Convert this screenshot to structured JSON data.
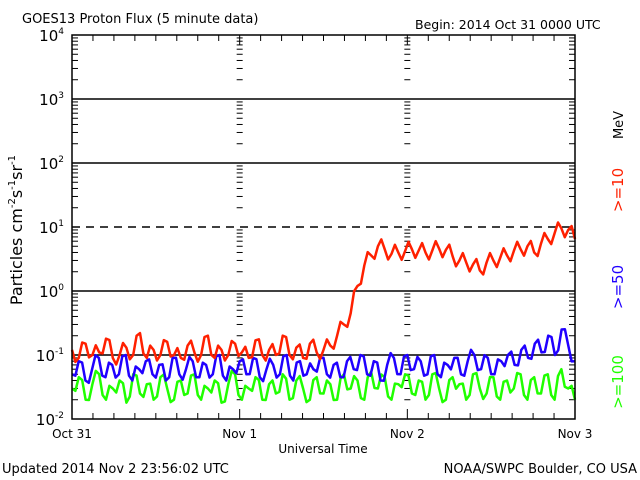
{
  "chart_data": {
    "type": "line",
    "title": "GOES13 Proton Flux (5 minute data)",
    "begin_label": "Begin: 2014 Oct 31 0000 UTC",
    "xlabel": "Universal Time",
    "ylabel": "Particles cm",
    "ylabel_parts": [
      "Particles cm",
      "-2",
      "s",
      "-1",
      "sr",
      "-1"
    ],
    "yscale": "log",
    "ylim": [
      0.01,
      10000
    ],
    "y_ticks": [
      {
        "base": "10",
        "exp": "4"
      },
      {
        "base": "10",
        "exp": "3"
      },
      {
        "base": "10",
        "exp": "2"
      },
      {
        "base": "10",
        "exp": "1"
      },
      {
        "base": "10",
        "exp": "0"
      },
      {
        "base": "10",
        "exp": "-1"
      },
      {
        "base": "10",
        "exp": "-2"
      }
    ],
    "x_range_days": [
      0,
      3
    ],
    "x_tick_labels": [
      "Oct 31",
      "Nov 1",
      "Nov 2",
      "Nov 3"
    ],
    "threshold_line": 10,
    "units_label": "MeV",
    "series": [
      {
        "name": ">=10",
        "color": "#ff2000",
        "values": [
          0.12,
          0.09,
          0.15,
          0.1,
          0.11,
          0.18,
          0.09,
          0.1,
          0.13,
          0.1,
          0.22,
          0.09,
          0.12,
          0.1,
          0.16,
          0.1,
          0.09,
          0.14,
          0.11,
          0.1,
          0.2,
          0.09,
          0.12,
          0.1,
          0.15,
          0.11,
          0.09,
          0.17,
          0.1,
          0.12,
          0.1,
          0.2,
          0.1,
          0.13,
          0.09,
          0.15,
          0.11,
          0.12,
          0.14,
          0.2,
          0.3,
          0.45,
          1.2,
          2.5,
          3.6,
          5.0,
          4.5,
          3.8,
          4.0,
          4.2,
          4.5,
          4.3,
          4.0,
          4.3,
          4.6,
          4.4,
          3.5,
          3.0,
          2.8,
          2.6,
          2.1,
          2.8,
          3.0,
          3.3,
          3.6,
          4.2,
          4.5,
          5.0,
          4.0,
          5.5,
          6.5,
          8.0,
          9.5,
          9.0,
          6.5
        ]
      },
      {
        "name": ">=50",
        "color": "#2000ff",
        "values": [
          0.05,
          0.08,
          0.04,
          0.06,
          0.09,
          0.045,
          0.07,
          0.05,
          0.1,
          0.04,
          0.06,
          0.08,
          0.05,
          0.07,
          0.04,
          0.09,
          0.05,
          0.06,
          0.08,
          0.045,
          0.07,
          0.05,
          0.1,
          0.04,
          0.06,
          0.08,
          0.05,
          0.09,
          0.045,
          0.06,
          0.07,
          0.05,
          0.1,
          0.04,
          0.08,
          0.05,
          0.06,
          0.09,
          0.05,
          0.07,
          0.045,
          0.08,
          0.06,
          0.1,
          0.05,
          0.08,
          0.04,
          0.07,
          0.09,
          0.05,
          0.1,
          0.06,
          0.08,
          0.05,
          0.1,
          0.045,
          0.07,
          0.09,
          0.05,
          0.08,
          0.1,
          0.06,
          0.09,
          0.05,
          0.08,
          0.1,
          0.07,
          0.12,
          0.09,
          0.15,
          0.11,
          0.2,
          0.1,
          0.25,
          0.14,
          0.08
        ]
      },
      {
        "name": ">=100",
        "color": "#20ff00",
        "values": [
          0.03,
          0.045,
          0.02,
          0.035,
          0.05,
          0.02,
          0.03,
          0.04,
          0.018,
          0.05,
          0.025,
          0.035,
          0.02,
          0.045,
          0.03,
          0.02,
          0.04,
          0.025,
          0.05,
          0.02,
          0.03,
          0.04,
          0.018,
          0.035,
          0.05,
          0.02,
          0.03,
          0.045,
          0.02,
          0.035,
          0.025,
          0.05,
          0.02,
          0.04,
          0.03,
          0.02,
          0.045,
          0.025,
          0.035,
          0.02,
          0.05,
          0.03,
          0.04,
          0.02,
          0.055,
          0.03,
          0.045,
          0.02,
          0.035,
          0.05,
          0.025,
          0.04,
          0.02,
          0.05,
          0.03,
          0.02,
          0.045,
          0.035,
          0.02,
          0.05,
          0.03,
          0.025,
          0.045,
          0.02,
          0.04,
          0.03,
          0.05,
          0.02,
          0.045,
          0.025,
          0.05,
          0.02,
          0.06,
          0.03,
          0.02
        ]
      }
    ]
  },
  "footer": {
    "updated": "Updated 2014 Nov  2 23:56:02 UTC",
    "source": "NOAA/SWPC Boulder, CO USA"
  }
}
